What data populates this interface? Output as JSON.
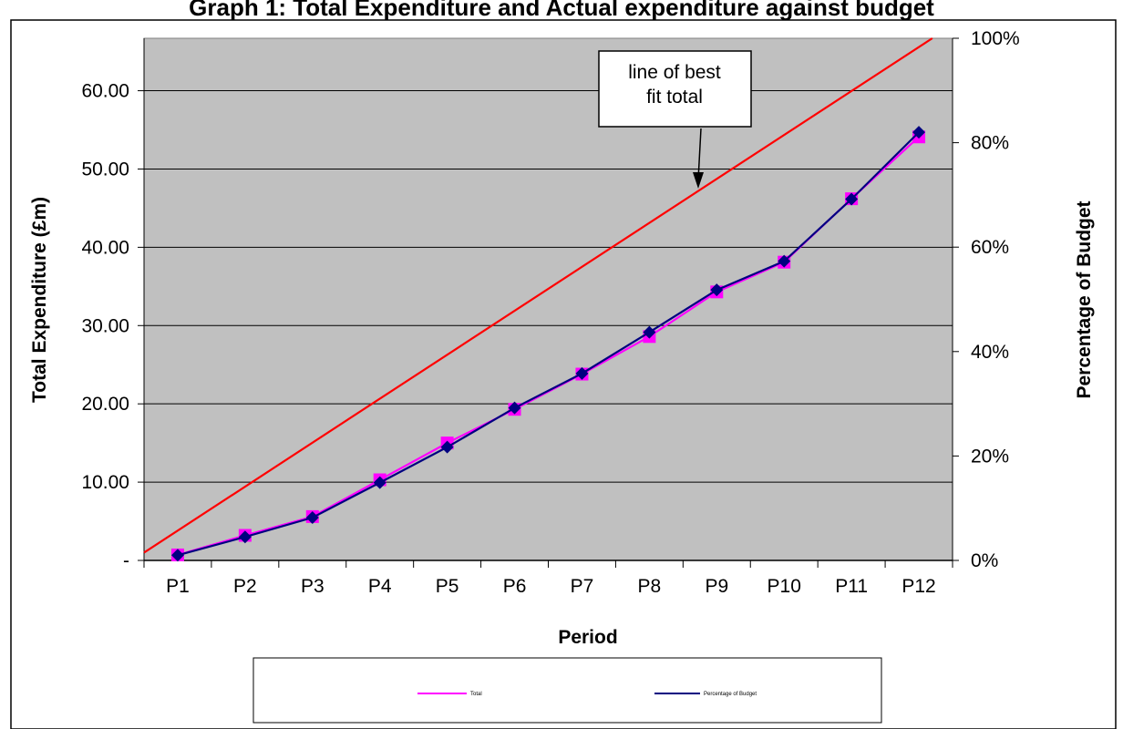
{
  "chart_data": {
    "type": "line",
    "title": "Graph 1: Total Expenditure and Actual expenditure against budget",
    "xlabel": "Period",
    "ylabel": "Total Expenditure (£m)",
    "y2label": "Percentage of Budget",
    "categories": [
      "P1",
      "P2",
      "P3",
      "P4",
      "P5",
      "P6",
      "P7",
      "P8",
      "P9",
      "P10",
      "P11",
      "P12"
    ],
    "ylim": [
      0,
      66.7
    ],
    "y_ticks": [
      0,
      10,
      20,
      30,
      40,
      50,
      60
    ],
    "y_tick_labels": [
      "-",
      "10.00",
      "20.00",
      "30.00",
      "40.00",
      "50.00",
      "60.00"
    ],
    "y2lim": [
      0,
      100
    ],
    "y2_ticks": [
      0,
      20,
      40,
      60,
      80,
      100
    ],
    "y2_tick_labels": [
      "0%",
      "20%",
      "40%",
      "60%",
      "80%",
      "100%"
    ],
    "grid": true,
    "legend_position": "bottom",
    "series": [
      {
        "name": "Total",
        "axis": "left",
        "color": "#ff00ff",
        "marker": "square",
        "values": [
          0.7,
          3.2,
          5.6,
          10.3,
          15.0,
          19.3,
          23.8,
          28.6,
          34.3,
          38.1,
          46.2,
          54.1
        ]
      },
      {
        "name": "Percentage of Budget",
        "axis": "right",
        "color": "#000080",
        "marker": "diamond",
        "values": [
          1.0,
          4.5,
          8.2,
          14.9,
          21.7,
          29.2,
          35.8,
          43.7,
          51.8,
          57.3,
          69.2,
          82.0
        ]
      }
    ],
    "trend_line": {
      "color": "#ff0000",
      "start": [
        0.5,
        1.0
      ],
      "end": [
        12.2,
        66.7
      ]
    },
    "annotation": {
      "text_lines": [
        "line of best",
        "fit total"
      ]
    }
  }
}
